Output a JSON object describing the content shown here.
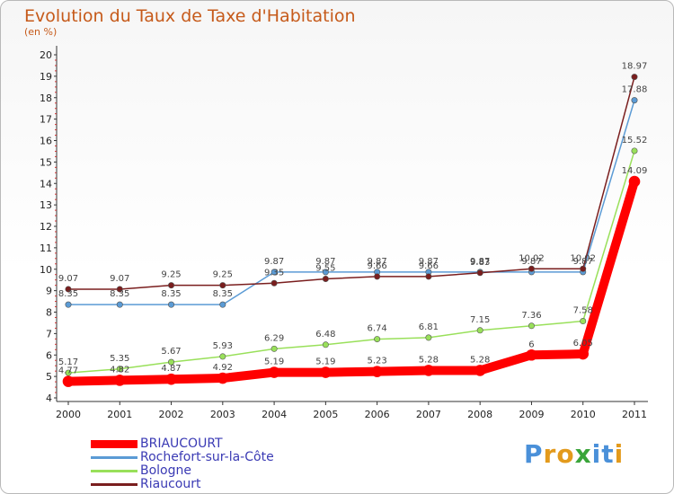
{
  "chart_data": {
    "type": "line",
    "title": "Evolution du Taux de Taxe d'Habitation",
    "subtitle": "(en %)",
    "x": [
      "2000",
      "2001",
      "2002",
      "2003",
      "2004",
      "2005",
      "2006",
      "2007",
      "2008",
      "2009",
      "2010",
      "2011"
    ],
    "ylim": [
      4,
      20
    ],
    "yticks": [
      4,
      5,
      6,
      7,
      8,
      9,
      10,
      11,
      12,
      13,
      14,
      15,
      16,
      17,
      18,
      19,
      20
    ],
    "grid": false,
    "legend_position": "bottom-left",
    "series": [
      {
        "name": "BRIAUCOURT",
        "color": "#ff0000",
        "values": [
          4.77,
          4.82,
          4.87,
          4.92,
          5.19,
          5.19,
          5.23,
          5.28,
          5.28,
          6,
          6.05,
          14.09
        ],
        "labels": [
          "4.77",
          "4.82",
          "4.87",
          "4.92",
          "5.19",
          "5.19",
          "5.23",
          "5.28",
          "5.28",
          "6",
          "6.05",
          "14.09"
        ]
      },
      {
        "name": "Rochefort-sur-la-Côte",
        "color": "#5b9bd5",
        "values": [
          8.35,
          8.35,
          8.35,
          8.35,
          9.87,
          9.87,
          9.87,
          9.87,
          9.87,
          9.87,
          9.87,
          17.88
        ],
        "labels": [
          "8.35",
          "8.35",
          "8.35",
          "8.35",
          "9.87",
          "9.87",
          "9.87",
          "9.87",
          "9.87",
          "9.87",
          "9.87",
          "17.88"
        ]
      },
      {
        "name": "Bologne",
        "color": "#99e05a",
        "values": [
          5.17,
          5.35,
          5.67,
          5.93,
          6.29,
          6.48,
          6.74,
          6.81,
          7.15,
          7.36,
          7.58,
          15.52
        ],
        "labels": [
          "5.17",
          "5.35",
          "5.67",
          "5.93",
          "6.29",
          "6.48",
          "6.74",
          "6.81",
          "7.15",
          "7.36",
          "7.58",
          "15.52"
        ]
      },
      {
        "name": "Riaucourt",
        "color": "#7a1e1e",
        "values": [
          9.07,
          9.07,
          9.25,
          9.25,
          9.35,
          9.55,
          9.66,
          9.66,
          9.83,
          10.02,
          10.02,
          18.97
        ],
        "labels": [
          "9.07",
          "9.07",
          "9.25",
          "9.25",
          "9.35",
          "9.55",
          "9.66",
          "9.66",
          "9.83",
          "10.02",
          "10.02",
          "18.97"
        ]
      }
    ]
  },
  "logo": {
    "letters": [
      "P",
      "r",
      "o",
      "x",
      "i",
      "t",
      "i"
    ],
    "colors": [
      "#4a90d9",
      "#e39a1c",
      "#e39a1c",
      "#3aa53a",
      "#4a90d9",
      "#4a90d9",
      "#e39a1c"
    ]
  }
}
